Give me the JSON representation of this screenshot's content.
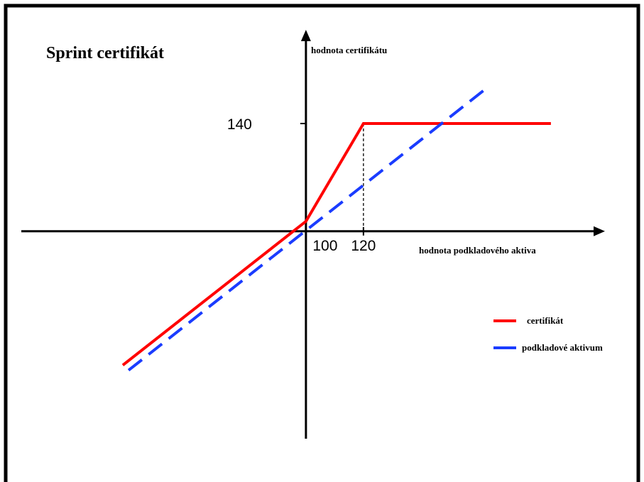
{
  "chart_data": {
    "type": "line",
    "title": "Sprint certifikát",
    "x_label": "hodnota podkladového aktiva",
    "y_label": "hodnota certifikátu",
    "xlim": [
      1,
      204
    ],
    "ylim": [
      23,
      174
    ],
    "xticks": [
      100,
      120
    ],
    "yticks": [
      140
    ],
    "axis_origin": [
      100,
      100
    ],
    "legend": "right",
    "series": [
      {
        "name": "certifikát",
        "color": "#ff0000",
        "line_style": "solid",
        "x": [
          36.3,
          100,
          120,
          185.2
        ],
        "values": [
          50.3,
          103.7,
          140,
          140
        ]
      },
      {
        "name": "podkladové aktivum",
        "color": "#1a3cff",
        "line_style": "dashed",
        "x": [
          38.3,
          163.5
        ],
        "values": [
          48.4,
          153.7
        ]
      }
    ]
  }
}
